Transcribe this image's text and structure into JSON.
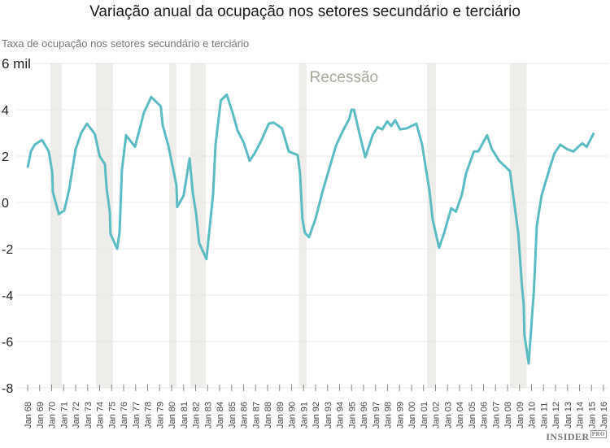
{
  "chart_data": {
    "type": "line",
    "title": "Variação anual da ocupação nos setores secundário e terciário",
    "ylabel": "Taxa de ocupação nos setores secundário e terciário",
    "xlabel": "",
    "ylim": [
      -8,
      6
    ],
    "xlim": [
      1968,
      2016
    ],
    "y_ticks": [
      {
        "value": 6,
        "label": "6 mil"
      },
      {
        "value": 4,
        "label": "4"
      },
      {
        "value": 2,
        "label": "2"
      },
      {
        "value": 0,
        "label": "0"
      },
      {
        "value": -2,
        "label": "-2"
      },
      {
        "value": -4,
        "label": "-4"
      },
      {
        "value": -6,
        "label": "-6"
      },
      {
        "value": -8,
        "label": "-8"
      }
    ],
    "x_ticks": [
      "Jan 68",
      "Jan 69",
      "Jan 70",
      "Jan 71",
      "Jan 72",
      "Jan 73",
      "Jan 74",
      "Jan 75",
      "Jan 76",
      "Jan 77",
      "Jan 78",
      "Jan 79",
      "Jan 80",
      "Jan 81",
      "Jan 82",
      "Jan 83",
      "Jan 84",
      "Jan 85",
      "Jan 86",
      "Jan 87",
      "Jan 88",
      "Jan 89",
      "Jan 90",
      "Jan 91",
      "Jan 92",
      "Jan 93",
      "Jan 94",
      "Jan 95",
      "Jan 96",
      "Jan 97",
      "Jan 98",
      "Jan 99",
      "Jan 00",
      "Jan 01",
      "Jan 02",
      "Jan 03",
      "Jan 04",
      "Jan 05",
      "Jan 06",
      "Jan 07",
      "Jan 08",
      "Jan 09",
      "Jan 10",
      "Jan 11",
      "Jan 12",
      "Jan 13",
      "Jan 14",
      "Jan 15",
      "Jan 16"
    ],
    "grid": true,
    "annotation": "Recessão",
    "recessions": [
      [
        1969.9,
        1970.85
      ],
      [
        1973.7,
        1975.1
      ],
      [
        1979.8,
        1980.4
      ],
      [
        1981.56,
        1982.85
      ],
      [
        1990.6,
        1991.25
      ],
      [
        2001.3,
        2002.03
      ],
      [
        2008.2,
        2009.6
      ]
    ],
    "series": [
      {
        "name": "Variação anual da ocupação",
        "color": "#5bbcc4",
        "x": [
          1968.0,
          1968.27,
          1968.6,
          1969.2,
          1969.76,
          1970.05,
          1970.1,
          1970.6,
          1971.05,
          1971.46,
          1972.0,
          1972.47,
          1972.95,
          1973.6,
          1974.0,
          1974.44,
          1974.58,
          1974.85,
          1974.9,
          1975.46,
          1975.66,
          1975.86,
          1976.2,
          1976.95,
          1977.7,
          1977.9,
          1978.3,
          1979.1,
          1979.25,
          1979.73,
          1980.07,
          1980.4,
          1980.47,
          1981.0,
          1981.5,
          1981.77,
          1982.05,
          1982.3,
          1982.9,
          1983.46,
          1983.66,
          1984.1,
          1984.6,
          1985.1,
          1985.5,
          1986.0,
          1986.5,
          1986.9,
          1987.46,
          1988.1,
          1988.5,
          1989.2,
          1989.76,
          1990.5,
          1990.7,
          1990.77,
          1990.9,
          1991.1,
          1991.45,
          1992.0,
          1992.6,
          1993.7,
          1994.24,
          1994.8,
          1995.0,
          1995.2,
          1995.6,
          1996.14,
          1996.5,
          1996.75,
          1997.15,
          1997.56,
          1997.97,
          1998.3,
          1998.64,
          1999.05,
          1999.6,
          2000.4,
          2000.88,
          2001.2,
          2001.5,
          2001.76,
          2002.3,
          2002.7,
          2003.3,
          2003.7,
          2004.2,
          2004.54,
          2005.2,
          2005.56,
          2006.03,
          2006.3,
          2006.7,
          2007.3,
          2008.2,
          2008.9,
          2009.2,
          2009.35,
          2009.4,
          2009.76,
          2010.2,
          2010.44,
          2010.84,
          2011.5,
          2011.9,
          2012.4,
          2012.95,
          2013.5,
          2014.0,
          2014.24,
          2014.6,
          2015.2
        ],
        "values": [
          1.5,
          2.2,
          2.5,
          2.7,
          2.2,
          1.3,
          0.45,
          -0.5,
          -0.35,
          0.55,
          2.3,
          3.0,
          3.4,
          2.95,
          2.0,
          1.65,
          0.6,
          -0.4,
          -1.35,
          -2.0,
          -1.3,
          1.4,
          2.9,
          2.4,
          3.9,
          4.1,
          4.55,
          4.15,
          3.35,
          2.45,
          1.6,
          0.75,
          -0.2,
          0.3,
          1.9,
          0.4,
          -0.5,
          -1.75,
          -2.45,
          0.35,
          2.5,
          4.4,
          4.65,
          3.85,
          3.1,
          2.6,
          1.8,
          2.1,
          2.65,
          3.4,
          3.45,
          3.2,
          2.2,
          2.05,
          1.3,
          0.6,
          -0.7,
          -1.3,
          -1.5,
          -0.7,
          0.5,
          2.45,
          3.05,
          3.6,
          4.0,
          4.0,
          3.1,
          1.95,
          2.5,
          2.9,
          3.25,
          3.15,
          3.5,
          3.3,
          3.55,
          3.15,
          3.2,
          3.4,
          2.5,
          1.45,
          0.5,
          -0.75,
          -1.95,
          -1.35,
          -0.25,
          -0.4,
          0.35,
          1.25,
          2.2,
          2.2,
          2.65,
          2.9,
          2.3,
          1.8,
          1.35,
          -1.35,
          -3.6,
          -4.4,
          -5.7,
          -6.95,
          -3.75,
          -1.0,
          0.3,
          1.45,
          2.1,
          2.5,
          2.3,
          2.2,
          2.45,
          2.55,
          2.4,
          3.0
        ]
      }
    ],
    "colors": {
      "line": "#5bbcc4",
      "recession": "#eeede9",
      "grid": "#e8e8e8"
    }
  },
  "brand": {
    "name": "INSIDER",
    "suffix": "PRO"
  }
}
